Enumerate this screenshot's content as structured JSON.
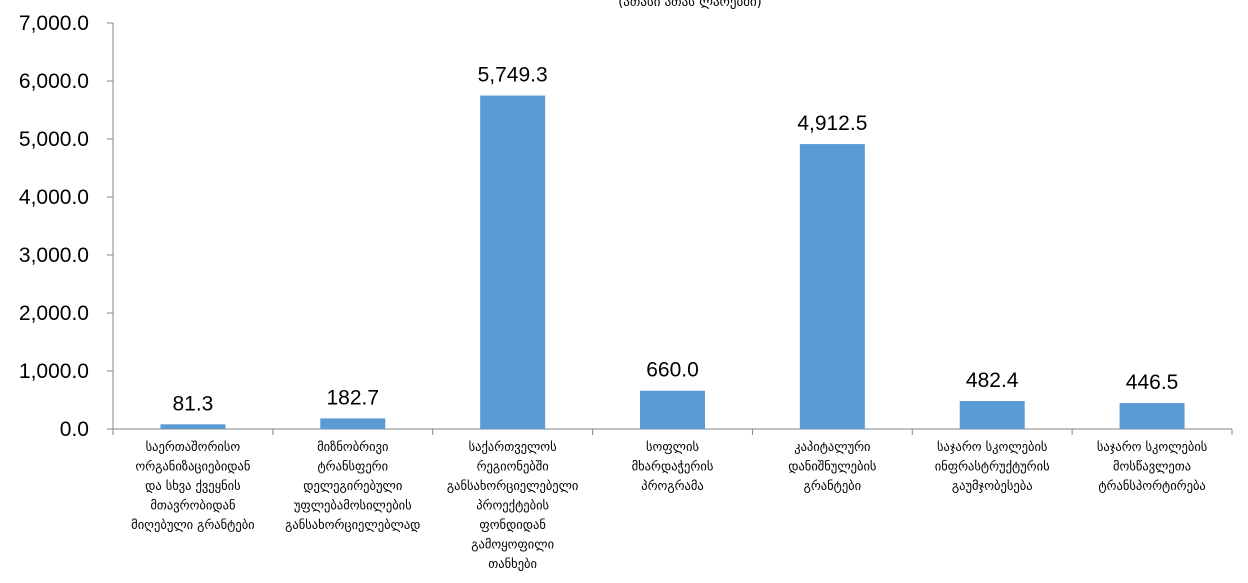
{
  "chart_data": {
    "type": "bar",
    "subtitle": "(ათასი ათას ლარებში)",
    "categories": [
      [
        "საერთაშორისო",
        "ორგანიზაციებიდან",
        "და სხვა ქვეყნის",
        "მთავრობიდან",
        "მიღებული გრანტები"
      ],
      [
        "მიზნობრივი",
        "ტრანსფერი",
        "დელეგირებული",
        "უფლებამოსილების",
        "განსახორციელებლად"
      ],
      [
        "საქართველოს",
        "რეგიონებში",
        "განსახორციელებელი",
        "პროექტების",
        "ფონდიდან",
        "გამოყოფილი",
        "თანხები"
      ],
      [
        "სოფლის",
        "მხარდაჭერის",
        "პროგრამა"
      ],
      [
        "კაპიტალური",
        "დანიშნულების",
        "გრანტები"
      ],
      [
        "საჯარო სკოლების",
        "ინფრასტრუქტურის",
        "გაუმჯობესება"
      ],
      [
        "საჯარო სკოლების",
        "მოსწავლეთა",
        "ტრანსპორტირება"
      ]
    ],
    "values": [
      81.3,
      182.7,
      5749.3,
      660.0,
      4912.5,
      482.4,
      446.5
    ],
    "data_labels": [
      "81.3",
      "182.7",
      "5,749.3",
      "660.0",
      "4,912.5",
      "482.4",
      "446.5"
    ],
    "y_ticks": [
      "0.0",
      "1,000.0",
      "2,000.0",
      "3,000.0",
      "4,000.0",
      "5,000.0",
      "6,000.0",
      "7,000.0"
    ],
    "ylim": [
      0,
      7000
    ],
    "bar_color": "#5b9bd5",
    "axis_color": "#868686",
    "grid": false,
    "legend": "none"
  }
}
